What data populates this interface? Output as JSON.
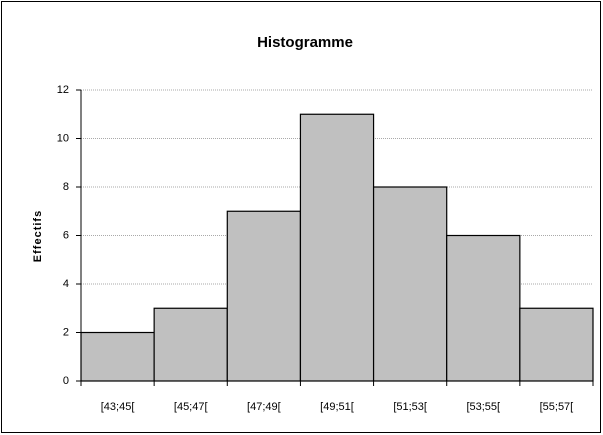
{
  "chart_data": {
    "type": "bar",
    "title": "Histogramme",
    "y_label": "Effectifs",
    "categories": [
      "[43;45[",
      "[45;47[",
      "[47;49[",
      "[49;51[",
      "[51;53[",
      "[53;55[",
      "[55;57["
    ],
    "values": [
      2,
      3,
      7,
      11,
      8,
      6,
      3
    ],
    "color": "#c0c0c0",
    "ylim": [
      0,
      12
    ],
    "yticks": [
      0,
      2,
      4,
      6,
      8,
      10,
      12
    ],
    "grid": true
  }
}
